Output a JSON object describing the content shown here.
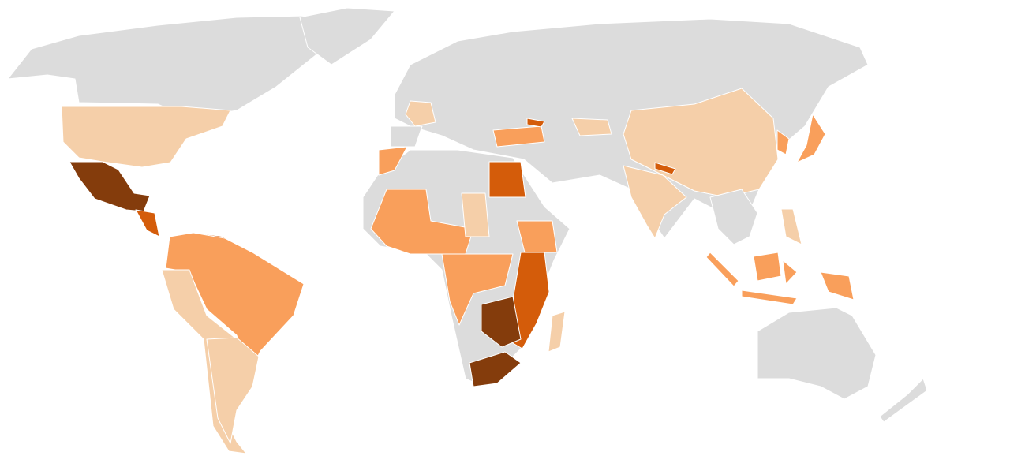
{
  "map": {
    "type": "choropleth",
    "palette": {
      "0": "#dcdcdc",
      "1": "#f5cfa9",
      "2": "#f99f5b",
      "3": "#d45c0a",
      "4": "#843c0c"
    },
    "regions": [
      {
        "id": "canada-alaska",
        "level": 0
      },
      {
        "id": "greenland",
        "level": 0
      },
      {
        "id": "usa",
        "level": 1
      },
      {
        "id": "mexico",
        "level": 4
      },
      {
        "id": "central-america",
        "level": 3
      },
      {
        "id": "venezuela",
        "level": 3
      },
      {
        "id": "brazil-colombia",
        "level": 2
      },
      {
        "id": "peru-chile",
        "level": 1
      },
      {
        "id": "argentina",
        "level": 1
      },
      {
        "id": "eurasia",
        "level": 0
      },
      {
        "id": "china",
        "level": 1
      },
      {
        "id": "india",
        "level": 1
      },
      {
        "id": "nepal",
        "level": 3
      },
      {
        "id": "japan",
        "level": 2
      },
      {
        "id": "korea",
        "level": 2
      },
      {
        "id": "france",
        "level": 1
      },
      {
        "id": "spain",
        "level": 0
      },
      {
        "id": "turkey",
        "level": 2
      },
      {
        "id": "georgia",
        "level": 3
      },
      {
        "id": "central-asia",
        "level": 1
      },
      {
        "id": "africa",
        "level": 0
      },
      {
        "id": "egypt",
        "level": 3
      },
      {
        "id": "morocco",
        "level": 2
      },
      {
        "id": "west-africa",
        "level": 2
      },
      {
        "id": "sudan",
        "level": 1
      },
      {
        "id": "central-africa",
        "level": 2
      },
      {
        "id": "ethiopia",
        "level": 2
      },
      {
        "id": "east-africa",
        "level": 3
      },
      {
        "id": "zambia-zimbabwe",
        "level": 4
      },
      {
        "id": "south-africa",
        "level": 4
      },
      {
        "id": "madagascar",
        "level": 1
      },
      {
        "id": "southeast-asia",
        "level": 0
      },
      {
        "id": "sumatra",
        "level": 2
      },
      {
        "id": "borneo",
        "level": 2
      },
      {
        "id": "sulawesi",
        "level": 2
      },
      {
        "id": "java",
        "level": 2
      },
      {
        "id": "papua",
        "level": 2
      },
      {
        "id": "philippines",
        "level": 1
      },
      {
        "id": "australia",
        "level": 0
      },
      {
        "id": "new-zealand",
        "level": 0
      }
    ]
  }
}
